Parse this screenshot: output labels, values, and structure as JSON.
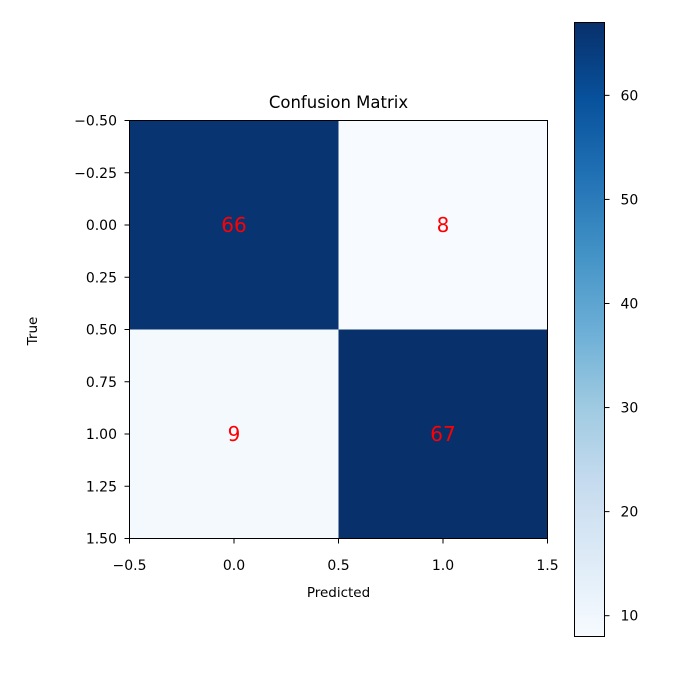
{
  "chart_data": {
    "type": "heatmap",
    "title": "Confusion Matrix",
    "xlabel": "Predicted",
    "ylabel": "True",
    "matrix": [
      [
        66,
        8
      ],
      [
        9,
        67
      ]
    ],
    "x_ticks": [
      -0.5,
      0.0,
      0.5,
      1.0,
      1.5
    ],
    "x_tick_labels": [
      "−0.5",
      "0.0",
      "0.5",
      "1.0",
      "1.5"
    ],
    "y_ticks": [
      -0.5,
      -0.25,
      0.0,
      0.25,
      0.5,
      0.75,
      1.0,
      1.25,
      1.5
    ],
    "y_tick_labels": [
      "−0.50",
      "−0.25",
      "0.00",
      "0.25",
      "0.50",
      "0.75",
      "1.00",
      "1.25",
      "1.50"
    ],
    "xlim": [
      -0.5,
      1.5
    ],
    "ylim": [
      1.5,
      -0.5
    ],
    "colormap": "Blues",
    "colorbar": {
      "range": [
        8,
        67
      ],
      "ticks": [
        10,
        20,
        30,
        40,
        50,
        60
      ],
      "tick_labels": [
        "10",
        "20",
        "30",
        "40",
        "50",
        "60"
      ]
    },
    "annotation_color": "#ff0000",
    "grid": false
  }
}
